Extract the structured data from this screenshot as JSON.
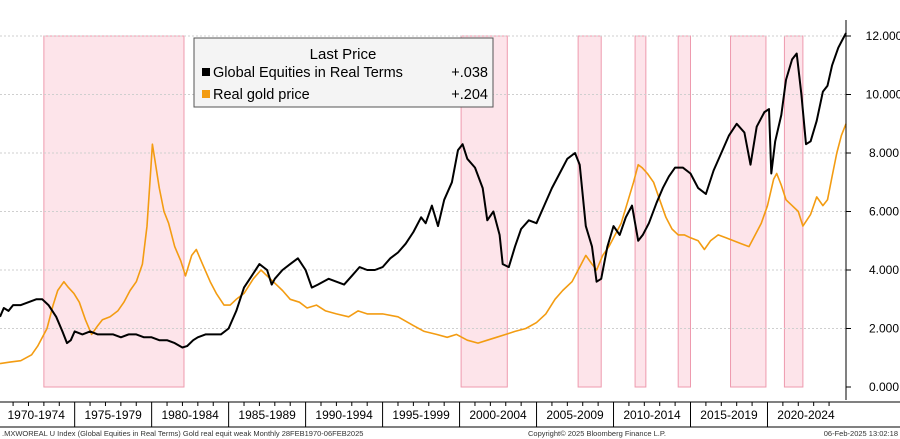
{
  "chart_data": {
    "type": "line",
    "title": "",
    "xlabel": "",
    "ylabel": "",
    "x_range": [
      1970.15,
      2025.1
    ],
    "ylim": [
      0,
      12
    ],
    "yticks": [
      {
        "value": 0,
        "label": "0.000"
      },
      {
        "value": 2,
        "label": "2.000"
      },
      {
        "value": 4,
        "label": "4.000"
      },
      {
        "value": 6,
        "label": "6.000"
      },
      {
        "value": 8,
        "label": "8.000"
      },
      {
        "value": 10,
        "label": "10.000"
      },
      {
        "value": 12,
        "label": "12.000"
      }
    ],
    "xticks": [
      {
        "start": 1970,
        "end": 1975,
        "label": "1970-1974"
      },
      {
        "start": 1975,
        "end": 1980,
        "label": "1975-1979"
      },
      {
        "start": 1980,
        "end": 1985,
        "label": "1980-1984"
      },
      {
        "start": 1985,
        "end": 1990,
        "label": "1985-1989"
      },
      {
        "start": 1990,
        "end": 1995,
        "label": "1990-1994"
      },
      {
        "start": 1995,
        "end": 2000,
        "label": "1995-1999"
      },
      {
        "start": 2000,
        "end": 2005,
        "label": "2000-2004"
      },
      {
        "start": 2005,
        "end": 2010,
        "label": "2005-2009"
      },
      {
        "start": 2010,
        "end": 2015,
        "label": "2010-2014"
      },
      {
        "start": 2015,
        "end": 2020,
        "label": "2015-2019"
      },
      {
        "start": 2020,
        "end": 2025,
        "label": "2020-2024"
      }
    ],
    "shaded_periods": [
      [
        1973.0,
        1982.1
      ],
      [
        2000.1,
        2003.1
      ],
      [
        2007.7,
        2009.2
      ],
      [
        2011.4,
        2012.1
      ],
      [
        2014.2,
        2015.0
      ],
      [
        2017.6,
        2019.9
      ],
      [
        2021.1,
        2022.3
      ]
    ],
    "legend": {
      "title": "Last Price",
      "entries": [
        {
          "name": "Global Equities in Real Terms",
          "value": "+.038",
          "color": "#000000"
        },
        {
          "name": "Real gold price",
          "value": "+.204",
          "color": "#f39c12"
        }
      ]
    },
    "series": [
      {
        "name": "Global Equities in Real Terms",
        "color": "#000000",
        "x": [
          1970.15,
          1970.4,
          1970.7,
          1971.0,
          1971.5,
          1972.0,
          1972.5,
          1972.9,
          1973.3,
          1973.8,
          1974.2,
          1974.5,
          1974.75,
          1975.0,
          1975.5,
          1976.0,
          1976.5,
          1977.0,
          1977.5,
          1978.0,
          1978.5,
          1979.0,
          1979.5,
          1980.0,
          1980.5,
          1981.0,
          1981.5,
          1982.0,
          1982.3,
          1982.7,
          1983.0,
          1983.5,
          1984.0,
          1984.5,
          1985.0,
          1985.5,
          1986.0,
          1986.5,
          1987.0,
          1987.5,
          1987.8,
          1988.0,
          1988.5,
          1989.0,
          1989.5,
          1990.0,
          1990.4,
          1990.8,
          1991.5,
          1992.0,
          1992.5,
          1993.0,
          1993.5,
          1994.0,
          1994.5,
          1995.0,
          1995.5,
          1996.0,
          1996.5,
          1997.0,
          1997.5,
          1997.8,
          1998.2,
          1998.6,
          1999.0,
          1999.5,
          1999.9,
          2000.2,
          2000.5,
          2001.0,
          2001.5,
          2001.8,
          2002.2,
          2002.6,
          2002.8,
          2003.2,
          2003.6,
          2004.0,
          2004.5,
          2005.0,
          2005.5,
          2006.0,
          2006.5,
          2007.0,
          2007.5,
          2007.8,
          2008.2,
          2008.6,
          2008.9,
          2009.2,
          2009.6,
          2010.0,
          2010.4,
          2010.8,
          2011.2,
          2011.6,
          2011.9,
          2012.3,
          2012.8,
          2013.2,
          2013.6,
          2014.0,
          2014.5,
          2015.0,
          2015.5,
          2016.0,
          2016.5,
          2017.0,
          2017.5,
          2018.0,
          2018.5,
          2018.9,
          2019.3,
          2019.8,
          2020.1,
          2020.25,
          2020.5,
          2020.9,
          2021.2,
          2021.6,
          2021.9,
          2022.2,
          2022.5,
          2022.8,
          2023.2,
          2023.6,
          2023.9,
          2024.2,
          2024.6,
          2024.9,
          2025.1
        ],
        "values": [
          2.4,
          2.7,
          2.6,
          2.8,
          2.8,
          2.9,
          3.0,
          3.0,
          2.8,
          2.4,
          1.9,
          1.5,
          1.6,
          1.9,
          1.8,
          1.9,
          1.8,
          1.8,
          1.8,
          1.7,
          1.8,
          1.8,
          1.7,
          1.7,
          1.6,
          1.6,
          1.5,
          1.35,
          1.4,
          1.6,
          1.7,
          1.8,
          1.8,
          1.8,
          2.0,
          2.6,
          3.4,
          3.8,
          4.2,
          4.0,
          3.5,
          3.7,
          4.0,
          4.2,
          4.4,
          4.0,
          3.4,
          3.5,
          3.7,
          3.6,
          3.5,
          3.8,
          4.1,
          4.0,
          4.0,
          4.1,
          4.4,
          4.6,
          4.9,
          5.3,
          5.8,
          5.6,
          6.2,
          5.5,
          6.4,
          7.0,
          8.1,
          8.3,
          7.8,
          7.5,
          6.8,
          5.7,
          6.0,
          5.2,
          4.2,
          4.1,
          4.8,
          5.4,
          5.7,
          5.6,
          6.2,
          6.8,
          7.3,
          7.8,
          8.0,
          7.6,
          5.5,
          4.8,
          3.6,
          3.7,
          4.8,
          5.5,
          5.2,
          5.8,
          6.2,
          5.0,
          5.2,
          5.6,
          6.3,
          6.8,
          7.2,
          7.5,
          7.5,
          7.3,
          6.8,
          6.6,
          7.4,
          8.0,
          8.6,
          9.0,
          8.7,
          7.6,
          8.9,
          9.4,
          9.5,
          7.3,
          8.4,
          9.3,
          10.5,
          11.2,
          11.4,
          10.0,
          8.3,
          8.4,
          9.1,
          10.1,
          10.3,
          11.0,
          11.6,
          11.9,
          12.1
        ]
      },
      {
        "name": "Real gold price",
        "color": "#f39c12",
        "x": [
          1970.15,
          1970.8,
          1971.5,
          1972.2,
          1972.6,
          1973.2,
          1973.6,
          1973.9,
          1974.3,
          1974.6,
          1974.95,
          1975.3,
          1975.7,
          1976.1,
          1976.5,
          1976.8,
          1977.3,
          1977.8,
          1978.2,
          1978.6,
          1979.0,
          1979.4,
          1979.7,
          1979.95,
          1980.05,
          1980.2,
          1980.5,
          1980.8,
          1981.1,
          1981.5,
          1981.9,
          1982.2,
          1982.6,
          1982.9,
          1983.3,
          1983.8,
          1984.2,
          1984.7,
          1985.1,
          1985.5,
          1986.0,
          1986.6,
          1987.1,
          1987.5,
          1987.9,
          1988.5,
          1989.0,
          1989.6,
          1990.1,
          1990.7,
          1991.3,
          1992.0,
          1992.8,
          1993.4,
          1994.0,
          1995.0,
          1996.0,
          1997.0,
          1997.7,
          1998.5,
          1999.2,
          1999.8,
          2000.5,
          2001.2,
          2001.8,
          2002.4,
          2003.0,
          2003.6,
          2004.3,
          2005.0,
          2005.6,
          2006.2,
          2006.7,
          2007.3,
          2007.8,
          2008.2,
          2008.6,
          2008.9,
          2009.3,
          2009.7,
          2010.1,
          2010.5,
          2010.9,
          2011.3,
          2011.6,
          2011.85,
          2012.2,
          2012.6,
          2013.0,
          2013.4,
          2013.8,
          2014.2,
          2014.6,
          2015.0,
          2015.5,
          2015.9,
          2016.3,
          2016.8,
          2017.3,
          2017.8,
          2018.3,
          2018.8,
          2019.2,
          2019.6,
          2020.0,
          2020.4,
          2020.6,
          2020.9,
          2021.2,
          2021.6,
          2022.0,
          2022.3,
          2022.8,
          2023.2,
          2023.6,
          2023.9,
          2024.2,
          2024.5,
          2024.8,
          2025.1
        ],
        "values": [
          0.8,
          0.85,
          0.9,
          1.1,
          1.4,
          2.0,
          2.8,
          3.3,
          3.6,
          3.4,
          3.2,
          2.9,
          2.3,
          1.8,
          2.1,
          2.3,
          2.4,
          2.6,
          2.9,
          3.3,
          3.6,
          4.2,
          5.5,
          7.5,
          8.3,
          7.8,
          6.8,
          6.0,
          5.6,
          4.8,
          4.3,
          3.8,
          4.5,
          4.7,
          4.2,
          3.6,
          3.2,
          2.8,
          2.8,
          3.0,
          3.2,
          3.7,
          4.0,
          3.8,
          3.6,
          3.3,
          3.0,
          2.9,
          2.7,
          2.8,
          2.6,
          2.5,
          2.4,
          2.6,
          2.5,
          2.5,
          2.4,
          2.1,
          1.9,
          1.8,
          1.7,
          1.8,
          1.6,
          1.5,
          1.6,
          1.7,
          1.8,
          1.9,
          2.0,
          2.2,
          2.5,
          3.0,
          3.3,
          3.6,
          4.1,
          4.5,
          4.2,
          4.0,
          4.5,
          4.8,
          5.2,
          5.6,
          6.3,
          7.0,
          7.6,
          7.5,
          7.3,
          7.0,
          6.4,
          5.8,
          5.4,
          5.2,
          5.2,
          5.1,
          5.0,
          4.7,
          5.0,
          5.2,
          5.1,
          5.0,
          4.9,
          4.8,
          5.2,
          5.6,
          6.2,
          7.1,
          7.3,
          6.9,
          6.4,
          6.2,
          6.0,
          5.5,
          5.9,
          6.5,
          6.2,
          6.4,
          7.2,
          8.0,
          8.6,
          9.0
        ]
      }
    ]
  },
  "footer": {
    "left": ".MXWOREAL U Index (Global Equities in Real Terms) Gold real equit weak  Monthly 28FEB1970-06FEB2025",
    "center": "Copyright© 2025 Bloomberg Finance L.P.",
    "right": "06-Feb-2025 13:02:18"
  }
}
